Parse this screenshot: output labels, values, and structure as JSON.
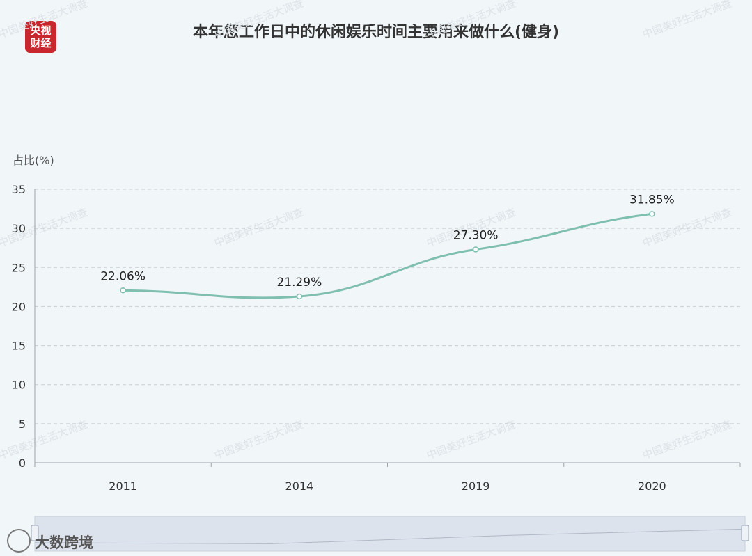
{
  "logo": {
    "line1": "央视",
    "line2": "财经",
    "color": "#c8272d"
  },
  "watermark": {
    "text": "大数跨境"
  },
  "repeated_watermark": "中国美好生活大调查",
  "chart_data": {
    "type": "line",
    "title": "本年您工作日中的休闲娱乐时间主要用来做什么(健身)",
    "ylabel": "占比(%)",
    "xlabel": "",
    "categories": [
      "2011",
      "2014",
      "2019",
      "2020"
    ],
    "series": [
      {
        "values": [
          22.06,
          21.29,
          27.3,
          31.85
        ],
        "labels": [
          "22.06%",
          "21.29%",
          "27.30%",
          "31.85%"
        ],
        "color": "#7fbfaf"
      }
    ],
    "ylim": [
      0,
      35
    ],
    "yticks": [
      0,
      5,
      10,
      15,
      20,
      25,
      30,
      35
    ],
    "grid": true,
    "smooth": true,
    "data_zoom": true
  }
}
